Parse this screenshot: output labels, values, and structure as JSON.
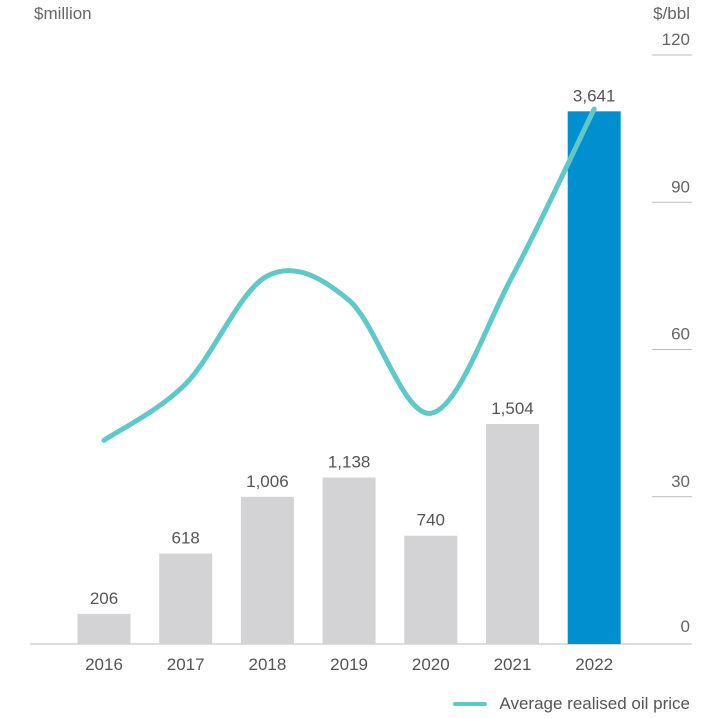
{
  "chart_data": {
    "type": "bar",
    "categories": [
      "2016",
      "2017",
      "2018",
      "2019",
      "2020",
      "2021",
      "2022"
    ],
    "left_axis_unit": "$million",
    "right_axis_unit": "$/bbl",
    "series": [
      {
        "type": "bar",
        "values": [
          206,
          618,
          1006,
          1138,
          740,
          1504,
          3641
        ],
        "value_labels": [
          "206",
          "618",
          "1,006",
          "1,138",
          "740",
          "1,504",
          "3,641"
        ],
        "colors": [
          "#d3d3d5",
          "#d3d3d5",
          "#d3d3d5",
          "#d3d3d5",
          "#d3d3d5",
          "#d3d3d5",
          "#0090d0"
        ]
      },
      {
        "type": "line",
        "name": "Average realised oil price",
        "values": [
          41.5,
          53,
          75,
          70,
          47,
          75,
          109
        ],
        "color": "#5ec9c7"
      }
    ],
    "right_axis": {
      "ylim": [
        0,
        120
      ],
      "ticks": [
        "0",
        "30",
        "60",
        "90",
        "120"
      ]
    },
    "legend_position": "bottom-right",
    "grid": false
  }
}
